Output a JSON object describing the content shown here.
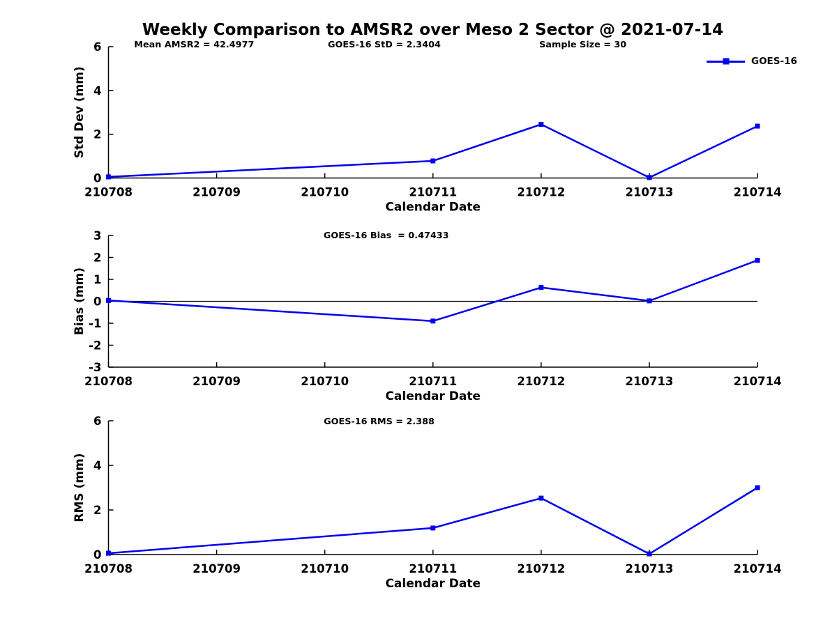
{
  "page": {
    "title": "Weekly Comparison to AMSR2 over Meso 2 Sector @ 2021-07-14"
  },
  "legend": {
    "label": "GOES-16",
    "position": "top-right",
    "marker": "filled-square"
  },
  "colors": {
    "series": "#0000EE",
    "axis": "#000000",
    "text": "#000000",
    "background": "#ffffff"
  },
  "chart_data": [
    {
      "type": "line",
      "name": "std-dev",
      "ylabel": "Std Dev (mm)",
      "xlabel": "Calendar Date",
      "ylim": [
        0,
        6
      ],
      "yticks": [
        0,
        2,
        4,
        6
      ],
      "xticks": [
        "210708",
        "210709",
        "210710",
        "210711",
        "210712",
        "210713",
        "210714"
      ],
      "x": [
        "210708",
        "210711",
        "210712",
        "210713",
        "210714"
      ],
      "series": [
        {
          "name": "GOES-16",
          "values": [
            0.05,
            0.78,
            2.45,
            0.02,
            2.37
          ]
        }
      ],
      "zero_line": false,
      "grid": false,
      "annotations": [
        {
          "text": "Mean AMSR2 = 42.4977",
          "cx": 0.132
        },
        {
          "text": "GOES-16 StD = 2.3404",
          "cx": 0.425
        },
        {
          "text": "Sample Size = 30",
          "cx": 0.731
        }
      ]
    },
    {
      "type": "line",
      "name": "bias",
      "ylabel": "Bias (mm)",
      "xlabel": "Calendar Date",
      "ylim": [
        -3,
        3
      ],
      "yticks": [
        -3,
        -2,
        -1,
        0,
        1,
        2,
        3
      ],
      "xticks": [
        "210708",
        "210709",
        "210710",
        "210711",
        "210712",
        "210713",
        "210714"
      ],
      "x": [
        "210708",
        "210711",
        "210712",
        "210713",
        "210714"
      ],
      "series": [
        {
          "name": "GOES-16",
          "values": [
            0.04,
            -0.9,
            0.63,
            0.02,
            1.87
          ]
        }
      ],
      "zero_line": true,
      "grid": false,
      "annotations": [
        {
          "text": "GOES-16 Bias  = 0.47433",
          "cx": 0.428
        }
      ]
    },
    {
      "type": "line",
      "name": "rms",
      "ylabel": "RMS (mm)",
      "xlabel": "Calendar Date",
      "ylim": [
        0,
        6
      ],
      "yticks": [
        0,
        2,
        4,
        6
      ],
      "xticks": [
        "210708",
        "210709",
        "210710",
        "210711",
        "210712",
        "210713",
        "210714"
      ],
      "x": [
        "210708",
        "210711",
        "210712",
        "210713",
        "210714"
      ],
      "series": [
        {
          "name": "GOES-16",
          "values": [
            0.06,
            1.19,
            2.53,
            0.03,
            3.0
          ]
        }
      ],
      "zero_line": false,
      "grid": false,
      "annotations": [
        {
          "text": "GOES-16 RMS = 2.388",
          "cx": 0.417
        }
      ]
    }
  ]
}
